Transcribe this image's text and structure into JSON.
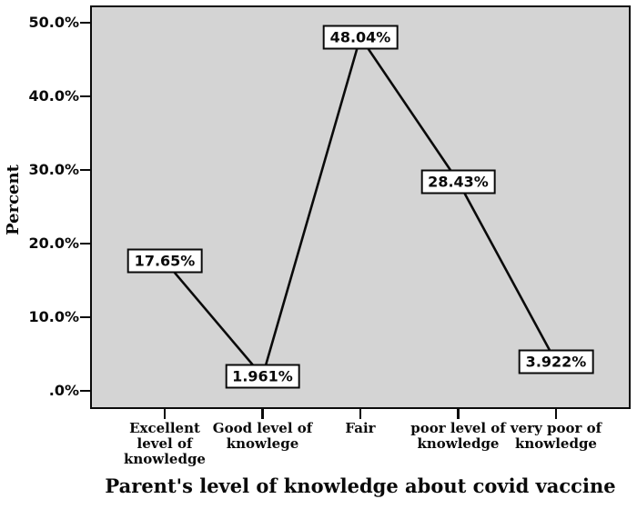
{
  "chart_data": {
    "type": "line",
    "title": "Parent's level of knowledge about covid vaccine",
    "xlabel": "Parent's level of knowledge about covid vaccine",
    "ylabel": "Percent",
    "categories": [
      "Excellent\nlevel of\nknowledge",
      "Good level of\nknowlege",
      "Fair",
      "poor level of\nknowledge",
      "very poor of\nknowledge"
    ],
    "values": [
      17.65,
      1.961,
      48.04,
      28.43,
      3.922
    ],
    "point_labels": [
      "17.65%",
      "1.961%",
      "48.04%",
      "28.43%",
      "3.922%"
    ],
    "ylim": [
      0,
      50
    ],
    "yticks": [
      {
        "value": 0,
        "label": ".0%"
      },
      {
        "value": 10,
        "label": "10.0%"
      },
      {
        "value": 20,
        "label": "20.0%"
      },
      {
        "value": 30,
        "label": "30.0%"
      },
      {
        "value": 40,
        "label": "40.0%"
      },
      {
        "value": 50,
        "label": "50.0%"
      }
    ],
    "grid": false,
    "legend": "none",
    "colors": {
      "line": "#0a0a0a",
      "plot_background": "#d4d4d4",
      "page_background": "#ffffff",
      "label_box_fill": "#ffffff",
      "label_box_border": "#0a0a0a"
    }
  }
}
